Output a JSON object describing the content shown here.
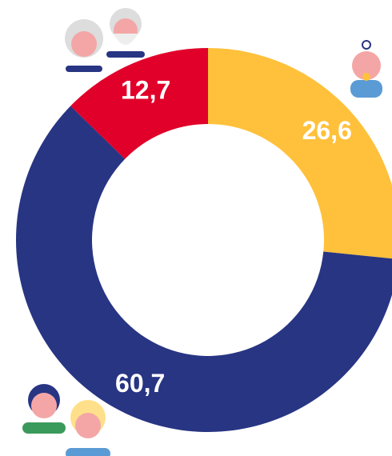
{
  "chart_data": {
    "type": "donut",
    "values": [
      26.6,
      60.7,
      12.7
    ],
    "value_labels": [
      "26,6",
      "60,7",
      "12,7"
    ],
    "colors": [
      "#FFC13B",
      "#283583",
      "#E1002A"
    ]
  }
}
